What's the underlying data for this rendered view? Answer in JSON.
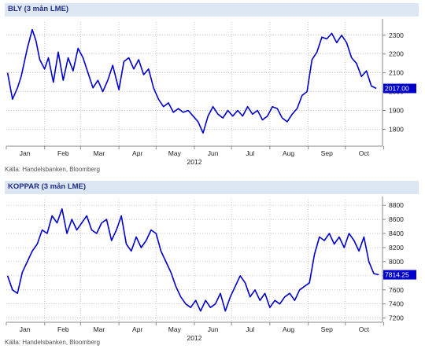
{
  "colors": {
    "line": "#0000cc",
    "header_bg": "#dde6f3",
    "header_text": "#1f2f8a",
    "grid": "#b0b0b0",
    "label_bg": "#0000cc"
  },
  "chart_data": [
    {
      "type": "line",
      "title": "BLY (3 mån LME)",
      "source": "Källa: Handelsbanken, Bloomberg",
      "year_label": "2012",
      "x_axis": {
        "type": "date",
        "ticks": [
          "Jan",
          "Feb",
          "Mar",
          "Apr",
          "May",
          "Jun",
          "Jul",
          "Aug",
          "Sep",
          "Oct"
        ],
        "range": [
          "2012-01-01",
          "2012-10-31"
        ]
      },
      "y_axis": {
        "position": "right",
        "ticks": [
          1800,
          1900,
          2000,
          2100,
          2200,
          2300
        ],
        "range": [
          1710,
          2370
        ]
      },
      "grid": "dotted",
      "last_value_label": "2017.00",
      "series": [
        {
          "x": [
            "2012-01-02",
            "2012-01-06",
            "2012-01-10",
            "2012-01-13",
            "2012-01-18",
            "2012-01-22",
            "2012-01-25",
            "2012-01-28",
            "2012-02-01",
            "2012-02-04",
            "2012-02-08",
            "2012-02-12",
            "2012-02-16",
            "2012-02-20",
            "2012-02-24",
            "2012-02-28",
            "2012-03-03",
            "2012-03-07",
            "2012-03-11",
            "2012-03-15",
            "2012-03-19",
            "2012-03-23",
            "2012-03-27",
            "2012-04-01",
            "2012-04-05",
            "2012-04-09",
            "2012-04-13",
            "2012-04-17",
            "2012-04-21",
            "2012-04-25",
            "2012-04-29",
            "2012-05-03",
            "2012-05-07",
            "2012-05-11",
            "2012-05-15",
            "2012-05-19",
            "2012-05-23",
            "2012-05-27",
            "2012-05-31",
            "2012-06-04",
            "2012-06-08",
            "2012-06-12",
            "2012-06-16",
            "2012-06-20",
            "2012-06-24",
            "2012-06-28",
            "2012-07-02",
            "2012-07-06",
            "2012-07-10",
            "2012-07-14",
            "2012-07-18",
            "2012-07-22",
            "2012-07-26",
            "2012-07-30",
            "2012-08-03",
            "2012-08-07",
            "2012-08-11",
            "2012-08-15",
            "2012-08-19",
            "2012-08-23",
            "2012-08-27",
            "2012-08-31",
            "2012-09-04",
            "2012-09-08",
            "2012-09-12",
            "2012-09-16",
            "2012-09-20",
            "2012-09-24",
            "2012-09-28",
            "2012-10-02",
            "2012-10-06",
            "2012-10-10",
            "2012-10-14",
            "2012-10-18",
            "2012-10-22",
            "2012-10-26"
          ],
          "values": [
            2100,
            1960,
            2020,
            2080,
            2230,
            2330,
            2270,
            2170,
            2120,
            2180,
            2050,
            2210,
            2060,
            2180,
            2110,
            2230,
            2180,
            2100,
            2020,
            2060,
            2000,
            2060,
            2140,
            2010,
            2160,
            2180,
            2120,
            2170,
            2090,
            2120,
            2020,
            1960,
            1920,
            1940,
            1890,
            1910,
            1890,
            1900,
            1870,
            1840,
            1780,
            1870,
            1920,
            1880,
            1860,
            1900,
            1870,
            1900,
            1870,
            1920,
            1880,
            1900,
            1850,
            1870,
            1920,
            1910,
            1860,
            1840,
            1880,
            1910,
            1980,
            2000,
            2170,
            2210,
            2290,
            2280,
            2310,
            2260,
            2300,
            2260,
            2180,
            2150,
            2080,
            2110,
            2030,
            2017
          ]
        }
      ]
    },
    {
      "type": "line",
      "title": "KOPPAR (3 mån LME)",
      "source": "Källa: Handelsbanken, Bloomberg",
      "year_label": "2012",
      "x_axis": {
        "type": "date",
        "ticks": [
          "Jan",
          "Feb",
          "Mar",
          "Apr",
          "May",
          "Jun",
          "Jul",
          "Aug",
          "Sep",
          "Oct"
        ],
        "range": [
          "2012-01-01",
          "2012-10-31"
        ]
      },
      "y_axis": {
        "position": "right",
        "ticks": [
          7200,
          7400,
          7600,
          7800,
          8000,
          8200,
          8400,
          8600,
          8800
        ],
        "range": [
          7140,
          8880
        ]
      },
      "grid": "dotted",
      "last_value_label": "7814.25",
      "series": [
        {
          "x": [
            "2012-01-02",
            "2012-01-06",
            "2012-01-10",
            "2012-01-14",
            "2012-01-18",
            "2012-01-22",
            "2012-01-26",
            "2012-01-30",
            "2012-02-03",
            "2012-02-07",
            "2012-02-11",
            "2012-02-15",
            "2012-02-19",
            "2012-02-23",
            "2012-02-27",
            "2012-03-02",
            "2012-03-06",
            "2012-03-10",
            "2012-03-14",
            "2012-03-18",
            "2012-03-22",
            "2012-03-26",
            "2012-03-30",
            "2012-04-03",
            "2012-04-07",
            "2012-04-11",
            "2012-04-15",
            "2012-04-19",
            "2012-04-23",
            "2012-04-27",
            "2012-05-01",
            "2012-05-05",
            "2012-05-09",
            "2012-05-13",
            "2012-05-17",
            "2012-05-21",
            "2012-05-25",
            "2012-05-29",
            "2012-06-02",
            "2012-06-06",
            "2012-06-10",
            "2012-06-14",
            "2012-06-18",
            "2012-06-22",
            "2012-06-26",
            "2012-06-30",
            "2012-07-04",
            "2012-07-08",
            "2012-07-12",
            "2012-07-16",
            "2012-07-20",
            "2012-07-24",
            "2012-07-28",
            "2012-08-01",
            "2012-08-05",
            "2012-08-09",
            "2012-08-13",
            "2012-08-17",
            "2012-08-21",
            "2012-08-25",
            "2012-08-29",
            "2012-09-02",
            "2012-09-06",
            "2012-09-10",
            "2012-09-14",
            "2012-09-18",
            "2012-09-22",
            "2012-09-26",
            "2012-09-30",
            "2012-10-04",
            "2012-10-08",
            "2012-10-12",
            "2012-10-16",
            "2012-10-20",
            "2012-10-24",
            "2012-10-28"
          ],
          "values": [
            7800,
            7600,
            7550,
            7850,
            8000,
            8150,
            8250,
            8450,
            8400,
            8650,
            8550,
            8750,
            8400,
            8600,
            8450,
            8550,
            8650,
            8450,
            8400,
            8550,
            8600,
            8300,
            8450,
            8650,
            8250,
            8150,
            8350,
            8200,
            8300,
            8450,
            8400,
            8150,
            8000,
            7850,
            7650,
            7500,
            7400,
            7350,
            7450,
            7300,
            7450,
            7350,
            7400,
            7550,
            7300,
            7500,
            7650,
            7800,
            7700,
            7500,
            7600,
            7450,
            7550,
            7350,
            7450,
            7400,
            7500,
            7550,
            7450,
            7600,
            7650,
            7700,
            8100,
            8350,
            8300,
            8400,
            8250,
            8350,
            8200,
            8400,
            8300,
            8150,
            8350,
            8000,
            7830,
            7814.25
          ]
        }
      ]
    }
  ]
}
